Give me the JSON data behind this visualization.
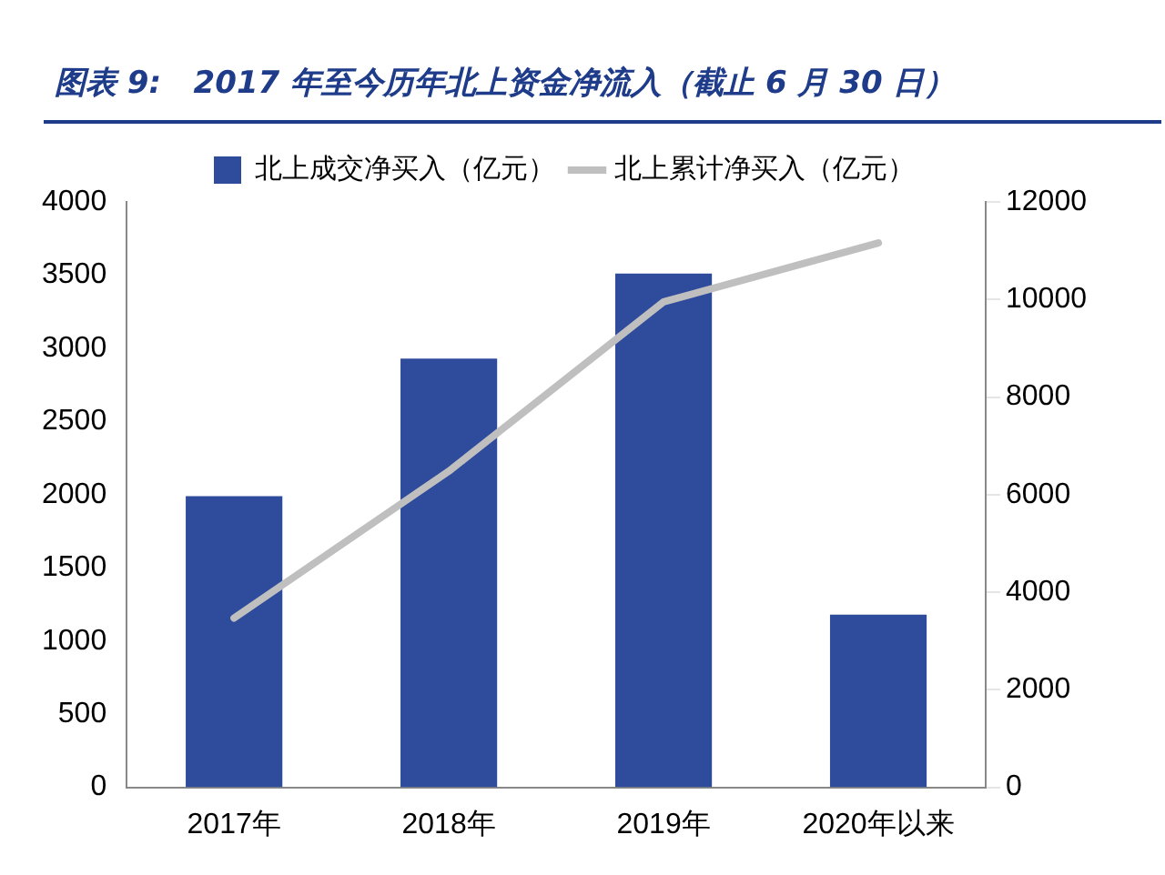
{
  "chart_data": {
    "type": "bar",
    "title": "图表 9:   2017 年至今历年北上资金净流入（截止 6 月 30 日）",
    "categories": [
      "2017年",
      "2018年",
      "2019年",
      "2020年以来"
    ],
    "series": [
      {
        "name": "北上成交净买入（亿元）",
        "color": "#2e4b9c",
        "values": [
          1990,
          2930,
          3510,
          1180
        ]
      },
      {
        "name": "北上累计净买入（亿元）",
        "type": "line",
        "axis": "y2",
        "color": "#bfbfbf",
        "values": [
          3470,
          6480,
          9950,
          11160
        ]
      }
    ],
    "ylim": [
      0,
      4000
    ],
    "yticks": [
      0,
      500,
      1000,
      1500,
      2000,
      2500,
      3000,
      3500,
      4000
    ],
    "y2lim": [
      0,
      12000
    ],
    "y2ticks": [
      0,
      2000,
      4000,
      6000,
      8000,
      10000,
      12000
    ],
    "grid": false,
    "legend": "top",
    "marker": "none"
  }
}
